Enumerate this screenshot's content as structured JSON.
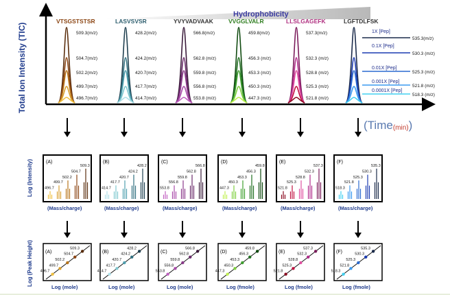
{
  "top_panel": {
    "y_axis_label": "Total Ion Intensity (TIC)",
    "x_axis_label_main": "Time",
    "x_axis_label_unit": "(min)",
    "x_axis_label_open": "(",
    "x_axis_label_close": ")",
    "hydrophobicity_label": "Hydrophobicity",
    "groups": [
      {
        "peptide": "VTSGSTSTSR",
        "color": "#8B4513",
        "mz": [
          "509.3(m/z)",
          "504.7(m/z)",
          "502.2(m/z)",
          "499.7(m/z)",
          "496.7(m/z)"
        ],
        "shades": [
          "#5a2d0c",
          "#8B4513",
          "#b8741a",
          "#d8a030",
          "#f0c040"
        ]
      },
      {
        "peptide": "LASVSVSR",
        "color": "#2f5f6f",
        "mz": [
          "428.2(m/z)",
          "424.2(m/z)",
          "420.7(m/z)",
          "417.7(m/z)",
          "414.7(m/z)"
        ],
        "shades": [
          "#1f3f4f",
          "#2f6f7f",
          "#4f9faf",
          "#7fc7cf",
          "#b0e0e8"
        ]
      },
      {
        "peptide": "YVYVADVAAK",
        "color": "#333333",
        "mz": [
          "566.8(m/z)",
          "562.8 (m/z)",
          "559.8 (m/z)",
          "556.8 (m/z)",
          "553.8 (m/z)"
        ],
        "shades": [
          "#3a1a3a",
          "#6a2a6a",
          "#8a3a8a",
          "#aa4aaa",
          "#c060c0"
        ]
      },
      {
        "peptide": "VVGGLVALR",
        "color": "#2e7d1e",
        "mz": [
          "459.8(m/z)",
          "456.3 (m/z)",
          "453.3 (m/z)",
          "450.3 (m/z)",
          "447.3 (m/z)"
        ],
        "shades": [
          "#0f4a0f",
          "#1f6f1f",
          "#3f9f2f",
          "#7fcf3f",
          "#c0f050"
        ]
      },
      {
        "peptide": "LLSLGAGEFK",
        "color": "#b03080",
        "mz": [
          "537.3(m/z)",
          "532.3 (m/z)",
          "528.8 (m/z)",
          "525.3 (m/z)",
          "521.8 (m/z)"
        ],
        "shades": [
          "#7a1a5a",
          "#b02a8a",
          "#e050a0",
          "#c01040",
          "#8a0a20"
        ]
      },
      {
        "peptide": "LGFTDLFSK",
        "color": "#333333",
        "mz": [
          "535.3(m/z)",
          "530.3 (m/z)",
          "525.3 (m/z)",
          "521.8 (m/z)",
          "518.3 (m/z)"
        ],
        "shades": [
          "#1a2a4a",
          "#1a3ab0",
          "#2a6ad0",
          "#3a9af0",
          "#40d0f0"
        ],
        "dilutions": [
          "1X [Pep]",
          "0.1X [Pep]",
          "0.01X [Pep]",
          "0.001X [Pep]",
          "0.0001X [Pep]"
        ]
      }
    ]
  },
  "middle_panel": {
    "y_axis_label": "Log (Intensity)",
    "x_axis_label": "(Mass/charge)",
    "panels": [
      {
        "letter": "(A)",
        "labels": [
          "496.7",
          "499.7",
          "502.2",
          "504.7",
          "509.3"
        ]
      },
      {
        "letter": "(B)",
        "labels": [
          "414.7",
          "417.7",
          "420.7",
          "424.2",
          "428.2"
        ]
      },
      {
        "letter": "(C)",
        "labels": [
          "553.8",
          "556.8",
          "559.8",
          "562.8",
          "566.8"
        ]
      },
      {
        "letter": "(D)",
        "labels": [
          "447.3",
          "450.3",
          "453.3",
          "456.3",
          "459.8"
        ]
      },
      {
        "letter": "(E)",
        "labels": [
          "521.8",
          "525.3",
          "528.8",
          "532.3",
          "537.3"
        ]
      },
      {
        "letter": "(F)",
        "labels": [
          "518.3",
          "521.8",
          "525.3",
          "530.3",
          "535.3"
        ]
      }
    ]
  },
  "bottom_panel": {
    "y_axis_label": "Log (Peak Height)",
    "panels": [
      {
        "letter": "(A)",
        "x_label": "Log (mole)"
      },
      {
        "letter": "(B)",
        "x_label": "Log (mole)"
      },
      {
        "letter": "(C)",
        "x_label": "Log (mole)"
      },
      {
        "letter": "(D)",
        "x_label": "Log (fmole)"
      },
      {
        "letter": "(E)",
        "x_label": "Log (fmole)"
      },
      {
        "letter": "(F)",
        "x_label": "Log (fmole)"
      }
    ]
  },
  "colors": {
    "axis": "#000000",
    "label_blue": "#1f3b8c",
    "time_red": "#c0392b",
    "hydrophobicity": "#3a3aa0"
  }
}
